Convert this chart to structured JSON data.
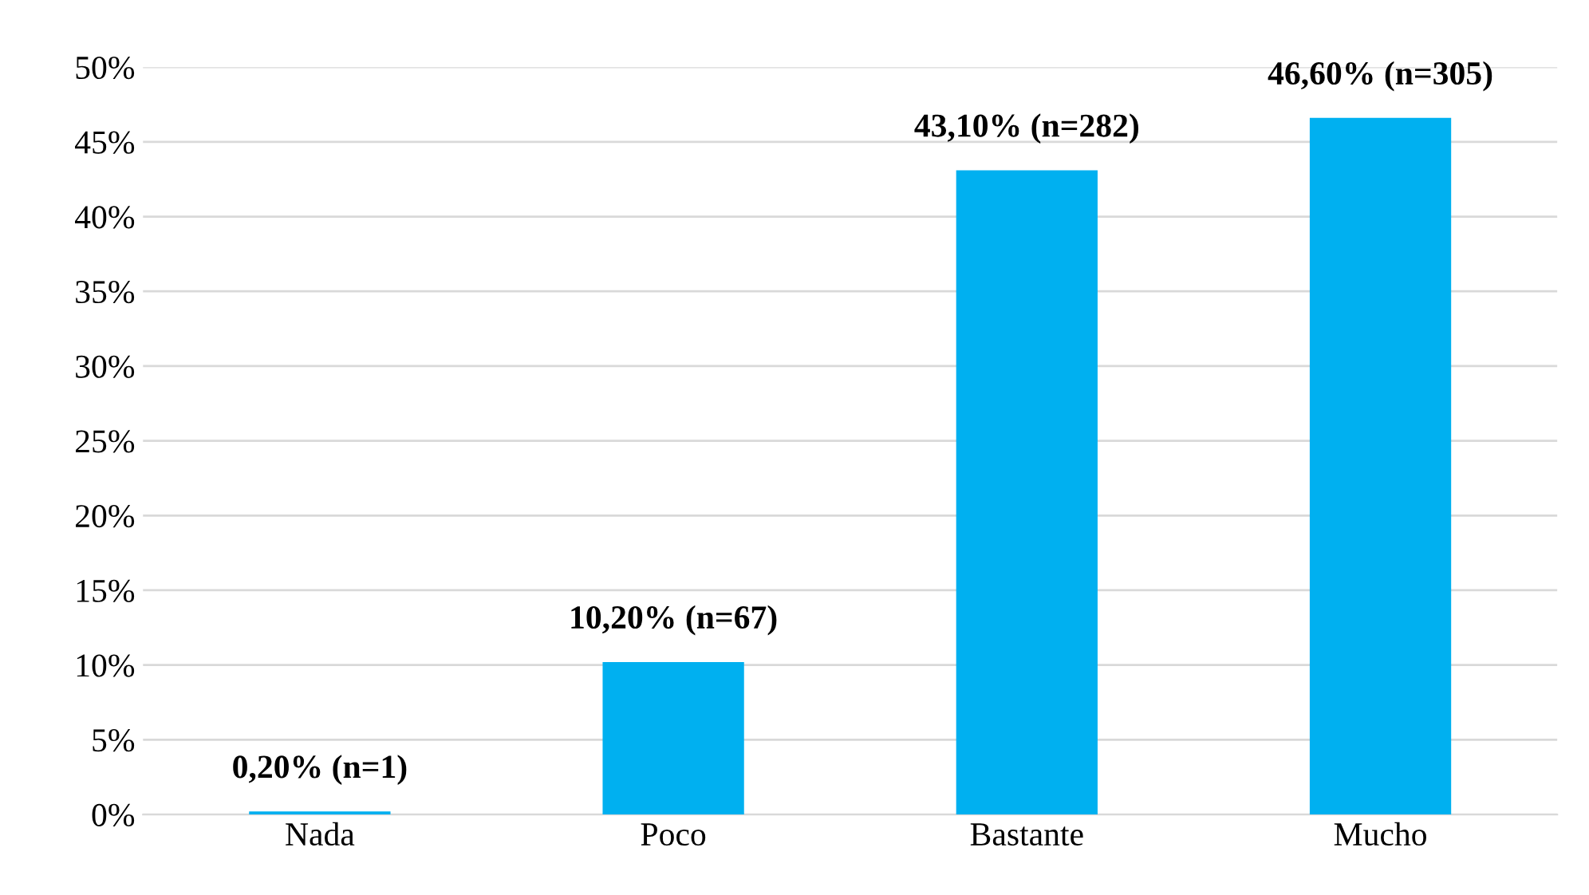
{
  "chart_data": {
    "type": "bar",
    "categories": [
      "Nada",
      "Poco",
      "Bastante",
      "Mucho"
    ],
    "values": [
      0.2,
      10.2,
      43.1,
      46.6
    ],
    "value_labels": [
      "0,20% (n=1)",
      "10,20% (n=67)",
      "43,10% (n=282)",
      "46,60% (n=305)"
    ],
    "color": "#00b0f0",
    "ylim": [
      0,
      50
    ],
    "yticks": [
      {
        "value": 0,
        "label": "0%"
      },
      {
        "value": 5,
        "label": "5%"
      },
      {
        "value": 10,
        "label": "10%"
      },
      {
        "value": 15,
        "label": "15%"
      },
      {
        "value": 20,
        "label": "20%"
      },
      {
        "value": 25,
        "label": "25%"
      },
      {
        "value": 30,
        "label": "30%"
      },
      {
        "value": 35,
        "label": "35%"
      },
      {
        "value": 40,
        "label": "40%"
      },
      {
        "value": 45,
        "label": "45%"
      },
      {
        "value": 50,
        "label": "50%"
      }
    ],
    "grid": "y"
  }
}
